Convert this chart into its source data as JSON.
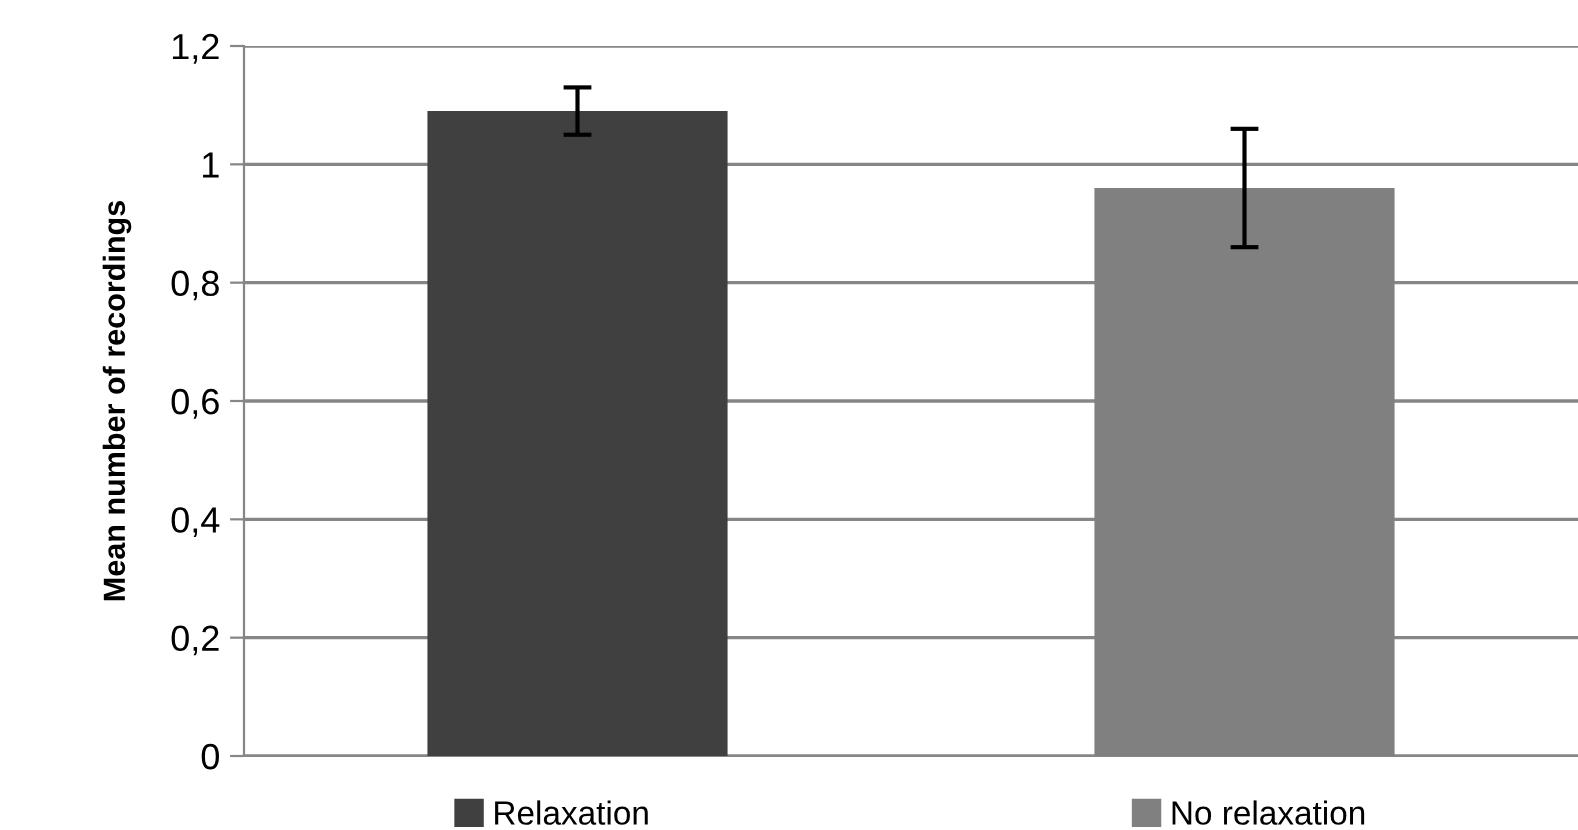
{
  "chart_data": {
    "type": "bar",
    "ylabel": "Mean number of recordings",
    "categories": [
      null,
      null
    ],
    "series": [
      {
        "name": "Relaxation",
        "color": "#404040",
        "values": [
          1.09,
          null
        ],
        "errors": [
          0.04,
          null
        ]
      },
      {
        "name": "No relaxation",
        "color": "#808080",
        "values": [
          null,
          0.96
        ],
        "errors": [
          null,
          0.1
        ]
      }
    ],
    "ylim": [
      0,
      1.2
    ],
    "yticks": [
      {
        "value": 0,
        "label": "0"
      },
      {
        "value": 0.2,
        "label": "0,2"
      },
      {
        "value": 0.4,
        "label": "0,4"
      },
      {
        "value": 0.6,
        "label": "0,6"
      },
      {
        "value": 0.8,
        "label": "0,8"
      },
      {
        "value": 1,
        "label": "1"
      },
      {
        "value": 1.2,
        "label": "1,2"
      }
    ],
    "grid": "y",
    "legend": "bottom"
  }
}
